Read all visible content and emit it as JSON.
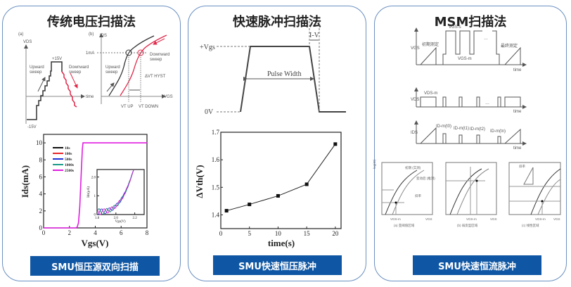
{
  "panels": [
    {
      "title": "传统电压扫描法",
      "button": "SMU恒压源双向扫描"
    },
    {
      "title": "快速脉冲扫描法",
      "button": "SMU快速恒压脉冲"
    },
    {
      "title": "MSM扫描法",
      "button": "SMU快速恒流脉冲"
    }
  ],
  "sweep_diagram": {
    "a_label": "(a)",
    "a_yaxis": "VDS",
    "plus": "+15V",
    "minus": "-15V",
    "upward": "Upward",
    "upward2": "sweep",
    "downward": "Downward",
    "downward2": "sweep",
    "time": "time",
    "b_label": "(b)",
    "b_yaxis": "IDS",
    "b_xaxis": "VGS",
    "one_ma": "1mA",
    "vt_up": "VT UP",
    "vt_down": "VT DOWN",
    "hyst": "ΔVT HYST"
  },
  "pulse_diagram": {
    "vgs": "+Vgs",
    "zero": "0V",
    "pulse_width": "Pulse Width",
    "edge": "I-V"
  },
  "msm_diagram": {
    "vgs": "VGS",
    "vds": "VDS",
    "ids": "IDS",
    "time": "time",
    "initial": "初期测定",
    "final": "最终测定",
    "vgs_stress": "VGS-s",
    "vgs_m": "VGS-m",
    "vds_m": "VDS-m",
    "ids_labels": [
      "ID-m(t0)",
      "ID-m(t1)",
      "ID-m(t2)",
      "ID-m(tn)"
    ],
    "dots": "…",
    "sub_captions": [
      "(a) 亚阈值区域",
      "(b) 弱反型区域",
      "(c) 线性区域"
    ],
    "sub_x": "VGS",
    "sub_xm": "VGS-m",
    "sub_y": "log(ID)",
    "initial_note": "初期\n(实测)",
    "after_note": "变动后\n(推测)",
    "slope": "斜率"
  },
  "chart_data": [
    {
      "type": "line",
      "xlabel": "Vgs(V)",
      "ylabel": "Ids(mA)",
      "xlim": [
        0,
        8
      ],
      "ylim": [
        0,
        11
      ],
      "xticks": [
        0,
        2,
        4,
        6,
        8
      ],
      "yticks": [
        0,
        2,
        4,
        6,
        8,
        10
      ],
      "legend_position": "top-left",
      "series": [
        {
          "name": "10s",
          "color": "#111111"
        },
        {
          "name": "100s",
          "color": "#e8262a"
        },
        {
          "name": "500s",
          "color": "#1f2fd6"
        },
        {
          "name": "1000s",
          "color": "#1a9a8a"
        },
        {
          "name": "2500s",
          "color": "#e01ee0",
          "x": [
            0,
            2.5,
            2.6,
            2.7,
            2.8,
            2.9,
            3.0,
            3.05,
            8
          ],
          "y": [
            0,
            0,
            0.1,
            0.6,
            2.5,
            6,
            9.3,
            10,
            10
          ]
        }
      ],
      "inset": {
        "xlabel": "Vgs(V)",
        "ylabel": "Ids(μA)",
        "xlim": [
          1.8,
          2.3
        ],
        "ylim": [
          0,
          2.4
        ],
        "xticks": [
          1.8,
          2.0,
          2.2
        ],
        "yticks": [
          0,
          1,
          2
        ]
      }
    },
    {
      "type": "line",
      "xlabel": "time(s)",
      "ylabel": "ΔVth(V)",
      "xlim": [
        0,
        21
      ],
      "ylim": [
        1.35,
        1.7
      ],
      "xticks": [
        0,
        5,
        10,
        15,
        20
      ],
      "yticks": [
        1.4,
        1.5,
        1.6,
        1.7
      ],
      "x": [
        1,
        5,
        10,
        15,
        20
      ],
      "y": [
        1.415,
        1.438,
        1.469,
        1.511,
        1.657
      ]
    }
  ]
}
